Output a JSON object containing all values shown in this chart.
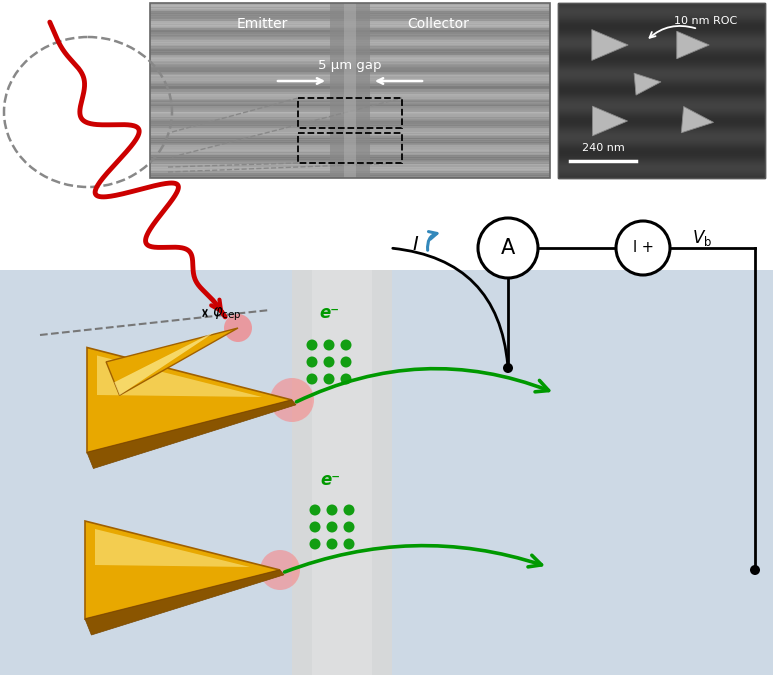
{
  "fig_width": 7.73,
  "fig_height": 6.75,
  "dpi": 100,
  "white_bg": "#ffffff",
  "light_blue_bg": "#cdd9e5",
  "gap_strip_color": "#dcdcdc",
  "gold_face": "#e8a800",
  "gold_dark": "#a06000",
  "gold_light": "#fff3a0",
  "red_color": "#cc0000",
  "green_color": "#009900",
  "blue_color": "#3388bb",
  "black": "#111111",
  "gray_dash": "#888888",
  "sem_bg": "#454545",
  "mic_bg": "#aaaaaa",
  "white": "#ffffff",
  "emitter_text": "Emitter",
  "collector_text": "Collector",
  "gap_text": "5 μm gap",
  "roc_text": "10 nm ROC",
  "scale_text": "240 nm",
  "A_text": "A",
  "I_text": "I",
  "eminus_text": "e⁻"
}
